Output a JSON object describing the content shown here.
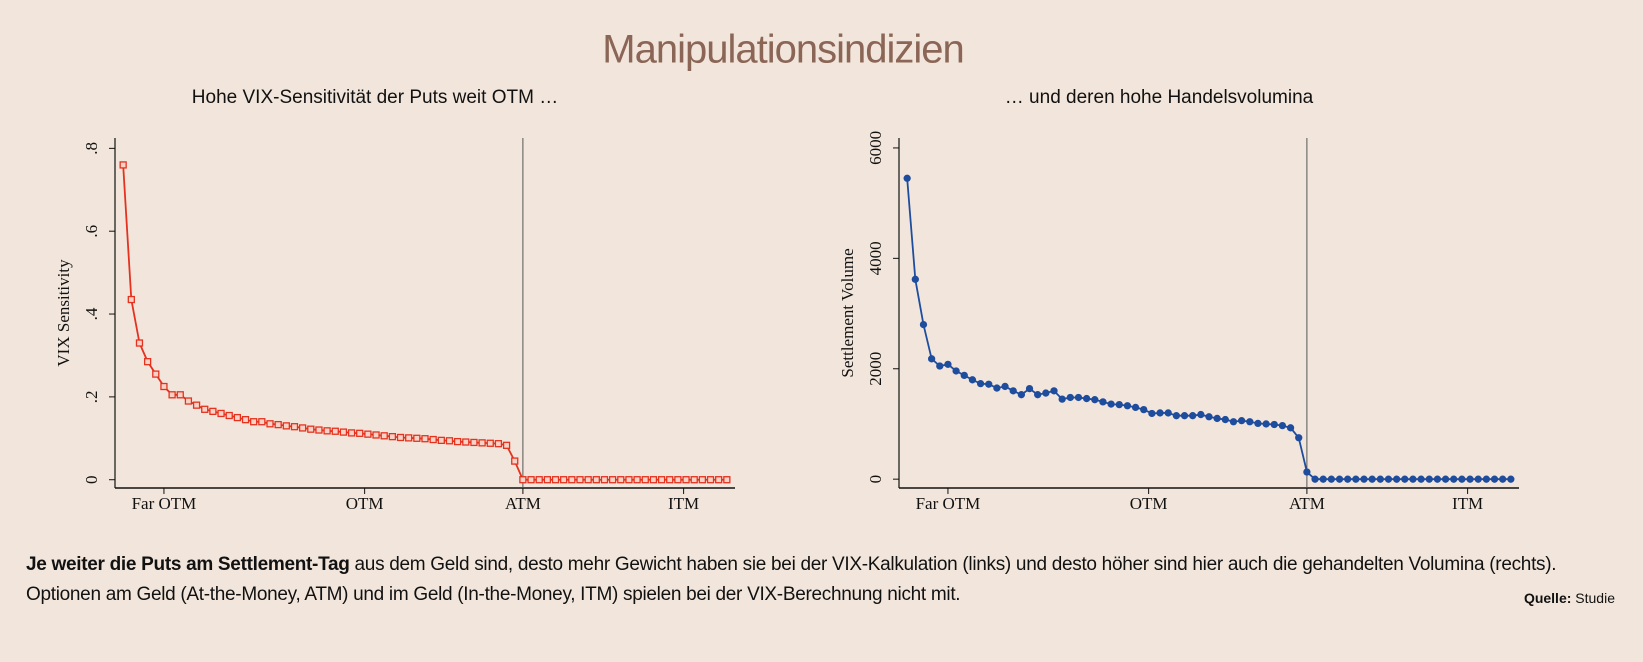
{
  "title": "Manipulationsindizien",
  "chart_data": [
    {
      "type": "line",
      "title": "Hohe VIX-Sensitivität der Puts weit OTM …",
      "ylabel": "VIX Sensitivity",
      "color": "#e5321f",
      "marker": "square",
      "x": [
        1,
        2,
        3,
        4,
        5,
        6,
        7,
        8,
        9,
        10,
        11,
        12,
        13,
        14,
        15,
        16,
        17,
        18,
        19,
        20,
        21,
        22,
        23,
        24,
        25,
        26,
        27,
        28,
        29,
        30,
        31,
        32,
        33,
        34,
        35,
        36,
        37,
        38,
        39,
        40,
        41,
        42,
        43,
        44,
        45,
        46,
        47,
        48,
        49,
        50,
        51,
        52,
        53,
        54,
        55,
        56,
        57,
        58,
        59,
        60,
        61,
        62,
        63,
        64,
        65,
        66,
        67,
        68,
        69,
        70,
        71,
        72,
        73,
        74,
        75
      ],
      "values": [
        0.76,
        0.435,
        0.33,
        0.285,
        0.255,
        0.225,
        0.205,
        0.205,
        0.19,
        0.18,
        0.17,
        0.165,
        0.16,
        0.155,
        0.15,
        0.145,
        0.14,
        0.14,
        0.135,
        0.133,
        0.13,
        0.128,
        0.125,
        0.122,
        0.12,
        0.118,
        0.117,
        0.115,
        0.113,
        0.112,
        0.11,
        0.108,
        0.106,
        0.104,
        0.102,
        0.101,
        0.1,
        0.099,
        0.097,
        0.095,
        0.094,
        0.092,
        0.091,
        0.09,
        0.089,
        0.088,
        0.087,
        0.083,
        0.045,
        0,
        0,
        0,
        0,
        0,
        0,
        0,
        0,
        0,
        0,
        0,
        0,
        0,
        0,
        0,
        0,
        0,
        0,
        0,
        0,
        0,
        0,
        0,
        0,
        0,
        0
      ],
      "xlim": [
        0,
        76
      ],
      "xticks": [
        {
          "value": 6,
          "label": "Far OTM"
        },
        {
          "value": 30.6,
          "label": "OTM"
        },
        {
          "value": 50,
          "label": "ATM"
        },
        {
          "value": 69.7,
          "label": "ITM"
        }
      ],
      "ylim": [
        -0.02,
        0.825
      ],
      "yticks": [
        0,
        {
          "value": 0.2,
          "label": ".2"
        },
        {
          "value": 0.4,
          "label": ".4"
        },
        {
          "value": 0.6,
          "label": ".6"
        },
        {
          "value": 0.8,
          "label": ".8"
        }
      ],
      "vline": 50
    },
    {
      "type": "line",
      "title": "… und deren hohe Handelsvolumina",
      "ylabel": "Settlement Volume",
      "color": "#1f4d9e",
      "marker": "circle",
      "x": [
        1,
        2,
        3,
        4,
        5,
        6,
        7,
        8,
        9,
        10,
        11,
        12,
        13,
        14,
        15,
        16,
        17,
        18,
        19,
        20,
        21,
        22,
        23,
        24,
        25,
        26,
        27,
        28,
        29,
        30,
        31,
        32,
        33,
        34,
        35,
        36,
        37,
        38,
        39,
        40,
        41,
        42,
        43,
        44,
        45,
        46,
        47,
        48,
        49,
        50,
        51,
        52,
        53,
        54,
        55,
        56,
        57,
        58,
        59,
        60,
        61,
        62,
        63,
        64,
        65,
        66,
        67,
        68,
        69,
        70,
        71,
        72,
        73,
        74,
        75
      ],
      "values": [
        5450,
        3620,
        2800,
        2180,
        2050,
        2080,
        1960,
        1880,
        1800,
        1730,
        1720,
        1650,
        1680,
        1600,
        1530,
        1640,
        1530,
        1560,
        1600,
        1450,
        1480,
        1480,
        1460,
        1440,
        1400,
        1360,
        1350,
        1330,
        1300,
        1260,
        1190,
        1200,
        1200,
        1150,
        1150,
        1150,
        1170,
        1130,
        1100,
        1080,
        1040,
        1060,
        1040,
        1010,
        1000,
        990,
        970,
        930,
        750,
        130,
        0,
        0,
        0,
        0,
        0,
        0,
        0,
        0,
        0,
        0,
        0,
        0,
        0,
        0,
        0,
        0,
        0,
        0,
        0,
        0,
        0,
        0,
        0,
        0,
        0
      ],
      "xlim": [
        0,
        76
      ],
      "xticks": [
        {
          "value": 6,
          "label": "Far OTM"
        },
        {
          "value": 30.6,
          "label": "OTM"
        },
        {
          "value": 50,
          "label": "ATM"
        },
        {
          "value": 69.7,
          "label": "ITM"
        }
      ],
      "ylim": [
        -160,
        6180
      ],
      "yticks": [
        0,
        2000,
        4000,
        6000
      ],
      "vline": 50
    }
  ],
  "caption": {
    "bold": "Je weiter die Puts am Settlement-Tag",
    "text": " aus dem Geld sind, desto mehr Gewicht haben sie bei der VIX-Kalkulation (links) und desto höher sind hier auch die gehandelten Volumina (rechts). Optionen am Geld (At-the-Money, ATM) und im Geld (In-the-Money, ITM) spielen bei der VIX-Berechnung nicht mit."
  },
  "source": {
    "label": "Quelle:",
    "text": " Studie"
  }
}
